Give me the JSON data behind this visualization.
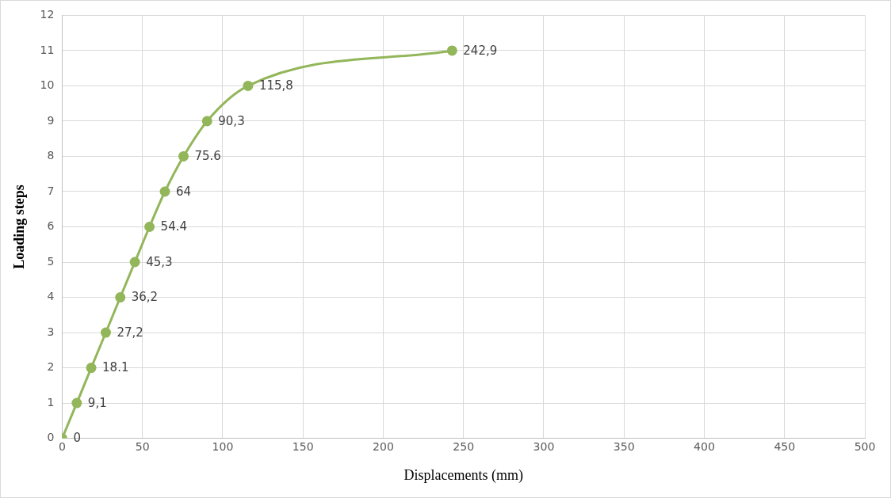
{
  "chart_data": {
    "type": "line",
    "xlabel": "Displacements (mm)",
    "ylabel": "Loading steps",
    "x": [
      0,
      9.1,
      18.1,
      27.2,
      36.2,
      45.3,
      54.4,
      64,
      75.6,
      90.3,
      115.8,
      242.9
    ],
    "series": [
      {
        "color": "#93b65a",
        "values": [
          0,
          1,
          2,
          3,
          4,
          5,
          6,
          7,
          8,
          9,
          10,
          11
        ]
      }
    ],
    "annotations": [
      {
        "text": "0",
        "x": 0,
        "y": 0
      },
      {
        "text": "9,1",
        "x": 9.1,
        "y": 1
      },
      {
        "text": "18.1",
        "x": 18.1,
        "y": 2
      },
      {
        "text": "27,2",
        "x": 27.2,
        "y": 3
      },
      {
        "text": "36,2",
        "x": 36.2,
        "y": 4
      },
      {
        "text": "45,3",
        "x": 45.3,
        "y": 5
      },
      {
        "text": "54.4",
        "x": 54.4,
        "y": 6
      },
      {
        "text": "64",
        "x": 64,
        "y": 7
      },
      {
        "text": "75.6",
        "x": 75.6,
        "y": 8
      },
      {
        "text": "90,3",
        "x": 90.3,
        "y": 9
      },
      {
        "text": "115,8",
        "x": 115.8,
        "y": 10
      },
      {
        "text": "242,9",
        "x": 242.9,
        "y": 11
      }
    ],
    "xlim": [
      0,
      500
    ],
    "xticks": [
      0,
      50,
      100,
      150,
      200,
      250,
      300,
      350,
      400,
      450,
      500
    ],
    "ylim": [
      0,
      12
    ],
    "yticks": [
      0,
      1,
      2,
      3,
      4,
      5,
      6,
      7,
      8,
      9,
      10,
      11,
      12
    ],
    "grid": true,
    "legend": false,
    "marker": "circle",
    "line_style": "solid"
  }
}
